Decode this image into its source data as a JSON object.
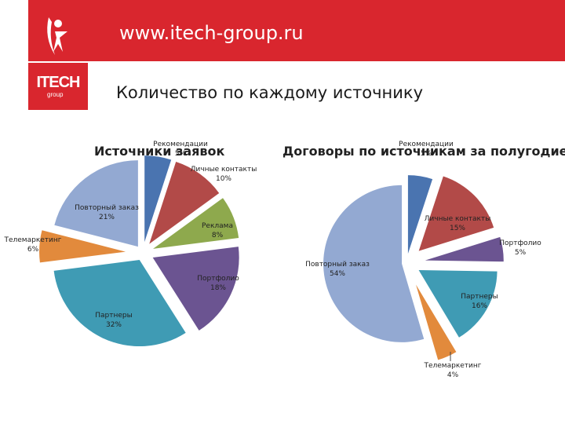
{
  "header": {
    "url": "www.itech-group.ru",
    "logo_text": "ITECH",
    "logo_sub": "group"
  },
  "page_title": "Количество по каждому источнику",
  "colors": {
    "brand_red": "#d9262e"
  },
  "chart_data": [
    {
      "type": "pie",
      "title": "Источники заявок",
      "slices": [
        {
          "label": "Рекомендации",
          "value": 5,
          "value_label": "5%",
          "color": "#4a74b0"
        },
        {
          "label": "Личные контакты",
          "value": 10,
          "value_label": "10%",
          "color": "#b24a48"
        },
        {
          "label": "Реклама",
          "value": 8,
          "value_label": "8%",
          "color": "#8ea94d"
        },
        {
          "label": "Портфолио",
          "value": 18,
          "value_label": "18%",
          "color": "#6b5491"
        },
        {
          "label": "Партнеры",
          "value": 32,
          "value_label": "32%",
          "color": "#3f9bb4"
        },
        {
          "label": "Телемаркетинг",
          "value": 6,
          "value_label": "6%",
          "color": "#e28a3c"
        },
        {
          "label": "Повторный заказ",
          "value": 21,
          "value_label": "21%",
          "color": "#93a9d2"
        }
      ]
    },
    {
      "type": "pie",
      "title": "Договоры по источникам за полугодие",
      "slices": [
        {
          "label": "Рекомендации",
          "value": 5,
          "value_label": "5%",
          "color": "#4a74b0"
        },
        {
          "label": "Личные контакты",
          "value": 15,
          "value_label": "15%",
          "color": "#b24a48"
        },
        {
          "label": "Портфолио",
          "value": 5,
          "value_label": "5%",
          "color": "#6b5491"
        },
        {
          "label": "Партнеры",
          "value": 16,
          "value_label": "16%",
          "color": "#3f9bb4"
        },
        {
          "label": "Телемаркетинг",
          "value": 4,
          "value_label": "4%",
          "color": "#e28a3c"
        },
        {
          "label": "Повторный заказ",
          "value": 54,
          "value_label": "54%",
          "color": "#93a9d2"
        }
      ]
    }
  ]
}
